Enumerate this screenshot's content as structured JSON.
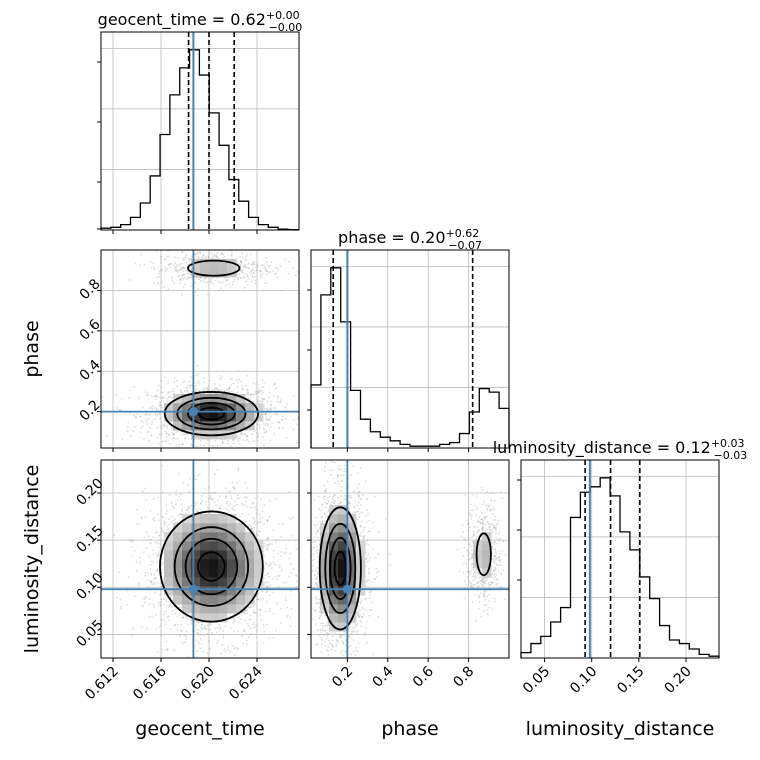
{
  "chart_data": {
    "type": "corner",
    "parameters": [
      {
        "name": "geocent_time",
        "range": [
          0.611,
          0.6275
        ],
        "ticks": [
          0.612,
          0.616,
          0.62,
          0.624
        ],
        "tick_labels": [
          "0.612",
          "0.616",
          "0.620",
          "0.624"
        ],
        "injected": 0.6187,
        "quantiles": [
          0.6183,
          0.62,
          0.6221
        ],
        "title": {
          "prefix": "geocent_time = 0.62",
          "sup": "+0.00",
          "sub": "−0.00"
        },
        "hist": {
          "start": 0.611,
          "step": 0.00082,
          "counts": [
            0.01,
            0.015,
            0.03,
            0.07,
            0.15,
            0.3,
            0.53,
            0.75,
            0.9,
            1.0,
            0.86,
            0.65,
            0.47,
            0.28,
            0.16,
            0.07,
            0.03,
            0.015,
            0.005,
            0.002
          ]
        }
      },
      {
        "name": "phase",
        "range": [
          0.02,
          1.0
        ],
        "ticks": [
          0.2,
          0.4,
          0.6,
          0.8
        ],
        "tick_labels": [
          "0.2",
          "0.4",
          "0.6",
          "0.8"
        ],
        "injected": 0.2,
        "quantiles": [
          0.13,
          0.2,
          0.82
        ],
        "title": {
          "prefix": "phase = 0.20",
          "sup": "+0.62",
          "sub": "−0.07"
        },
        "hist": {
          "start": 0.02,
          "step": 0.049,
          "counts": [
            0.35,
            0.85,
            1.0,
            0.7,
            0.32,
            0.16,
            0.09,
            0.06,
            0.04,
            0.02,
            0.01,
            0.01,
            0.01,
            0.02,
            0.03,
            0.08,
            0.2,
            0.33,
            0.31,
            0.22
          ]
        }
      },
      {
        "name": "luminosity_distance",
        "range": [
          0.025,
          0.235
        ],
        "ticks": [
          0.05,
          0.1,
          0.15,
          0.2
        ],
        "tick_labels": [
          "0.05",
          "0.10",
          "0.15",
          "0.20"
        ],
        "injected": 0.098,
        "quantiles": [
          0.093,
          0.12,
          0.151
        ],
        "title": {
          "prefix": "luminosity_distance = 0.12",
          "sup": "+0.03",
          "sub": "−0.03"
        },
        "hist": {
          "start": 0.025,
          "step": 0.0105,
          "counts": [
            0.03,
            0.08,
            0.12,
            0.2,
            0.28,
            0.78,
            0.92,
            0.95,
            1.0,
            0.9,
            0.7,
            0.6,
            0.45,
            0.33,
            0.18,
            0.1,
            0.08,
            0.05,
            0.02,
            0.01
          ]
        }
      }
    ],
    "yaxis_ticks": {
      "phase": {
        "ticks": [
          0.2,
          0.4,
          0.6,
          0.8
        ],
        "tick_labels": [
          "0.2",
          "0.4",
          "0.6",
          "0.8"
        ]
      },
      "luminosity_distance": {
        "ticks": [
          0.05,
          0.1,
          0.15,
          0.2
        ],
        "tick_labels": [
          "0.05",
          "0.10",
          "0.15",
          "0.20"
        ]
      }
    },
    "pairs": [
      {
        "x": "geocent_time",
        "y": "phase",
        "blobs": [
          {
            "cx": 0.6202,
            "cy": 0.19,
            "sx": 0.0021,
            "sy": 0.058,
            "w": 1.0
          },
          {
            "cx": 0.6204,
            "cy": 0.91,
            "sx": 0.002,
            "sy": 0.035,
            "w": 0.32
          }
        ],
        "contour_levels": [
          0.18,
          0.4,
          0.65,
          0.88
        ]
      },
      {
        "x": "geocent_time",
        "y": "luminosity_distance",
        "blobs": [
          {
            "cx": 0.6202,
            "cy": 0.122,
            "sx": 0.0022,
            "sy": 0.03,
            "w": 1.0
          }
        ],
        "contour_levels": [
          0.15,
          0.38,
          0.62,
          0.88
        ]
      },
      {
        "x": "phase",
        "y": "luminosity_distance",
        "blobs": [
          {
            "cx": 0.165,
            "cy": 0.12,
            "sx": 0.055,
            "sy": 0.035,
            "w": 1.0
          },
          {
            "cx": 0.875,
            "cy": 0.135,
            "sx": 0.035,
            "sy": 0.022,
            "w": 0.3
          }
        ],
        "contour_levels": [
          0.18,
          0.4,
          0.65,
          0.88
        ]
      }
    ],
    "colors": {
      "truth": "#4682b4",
      "grid": "#bbbbbb",
      "line": "#000000",
      "scatter": "#9a9a9a"
    },
    "grid": true
  }
}
